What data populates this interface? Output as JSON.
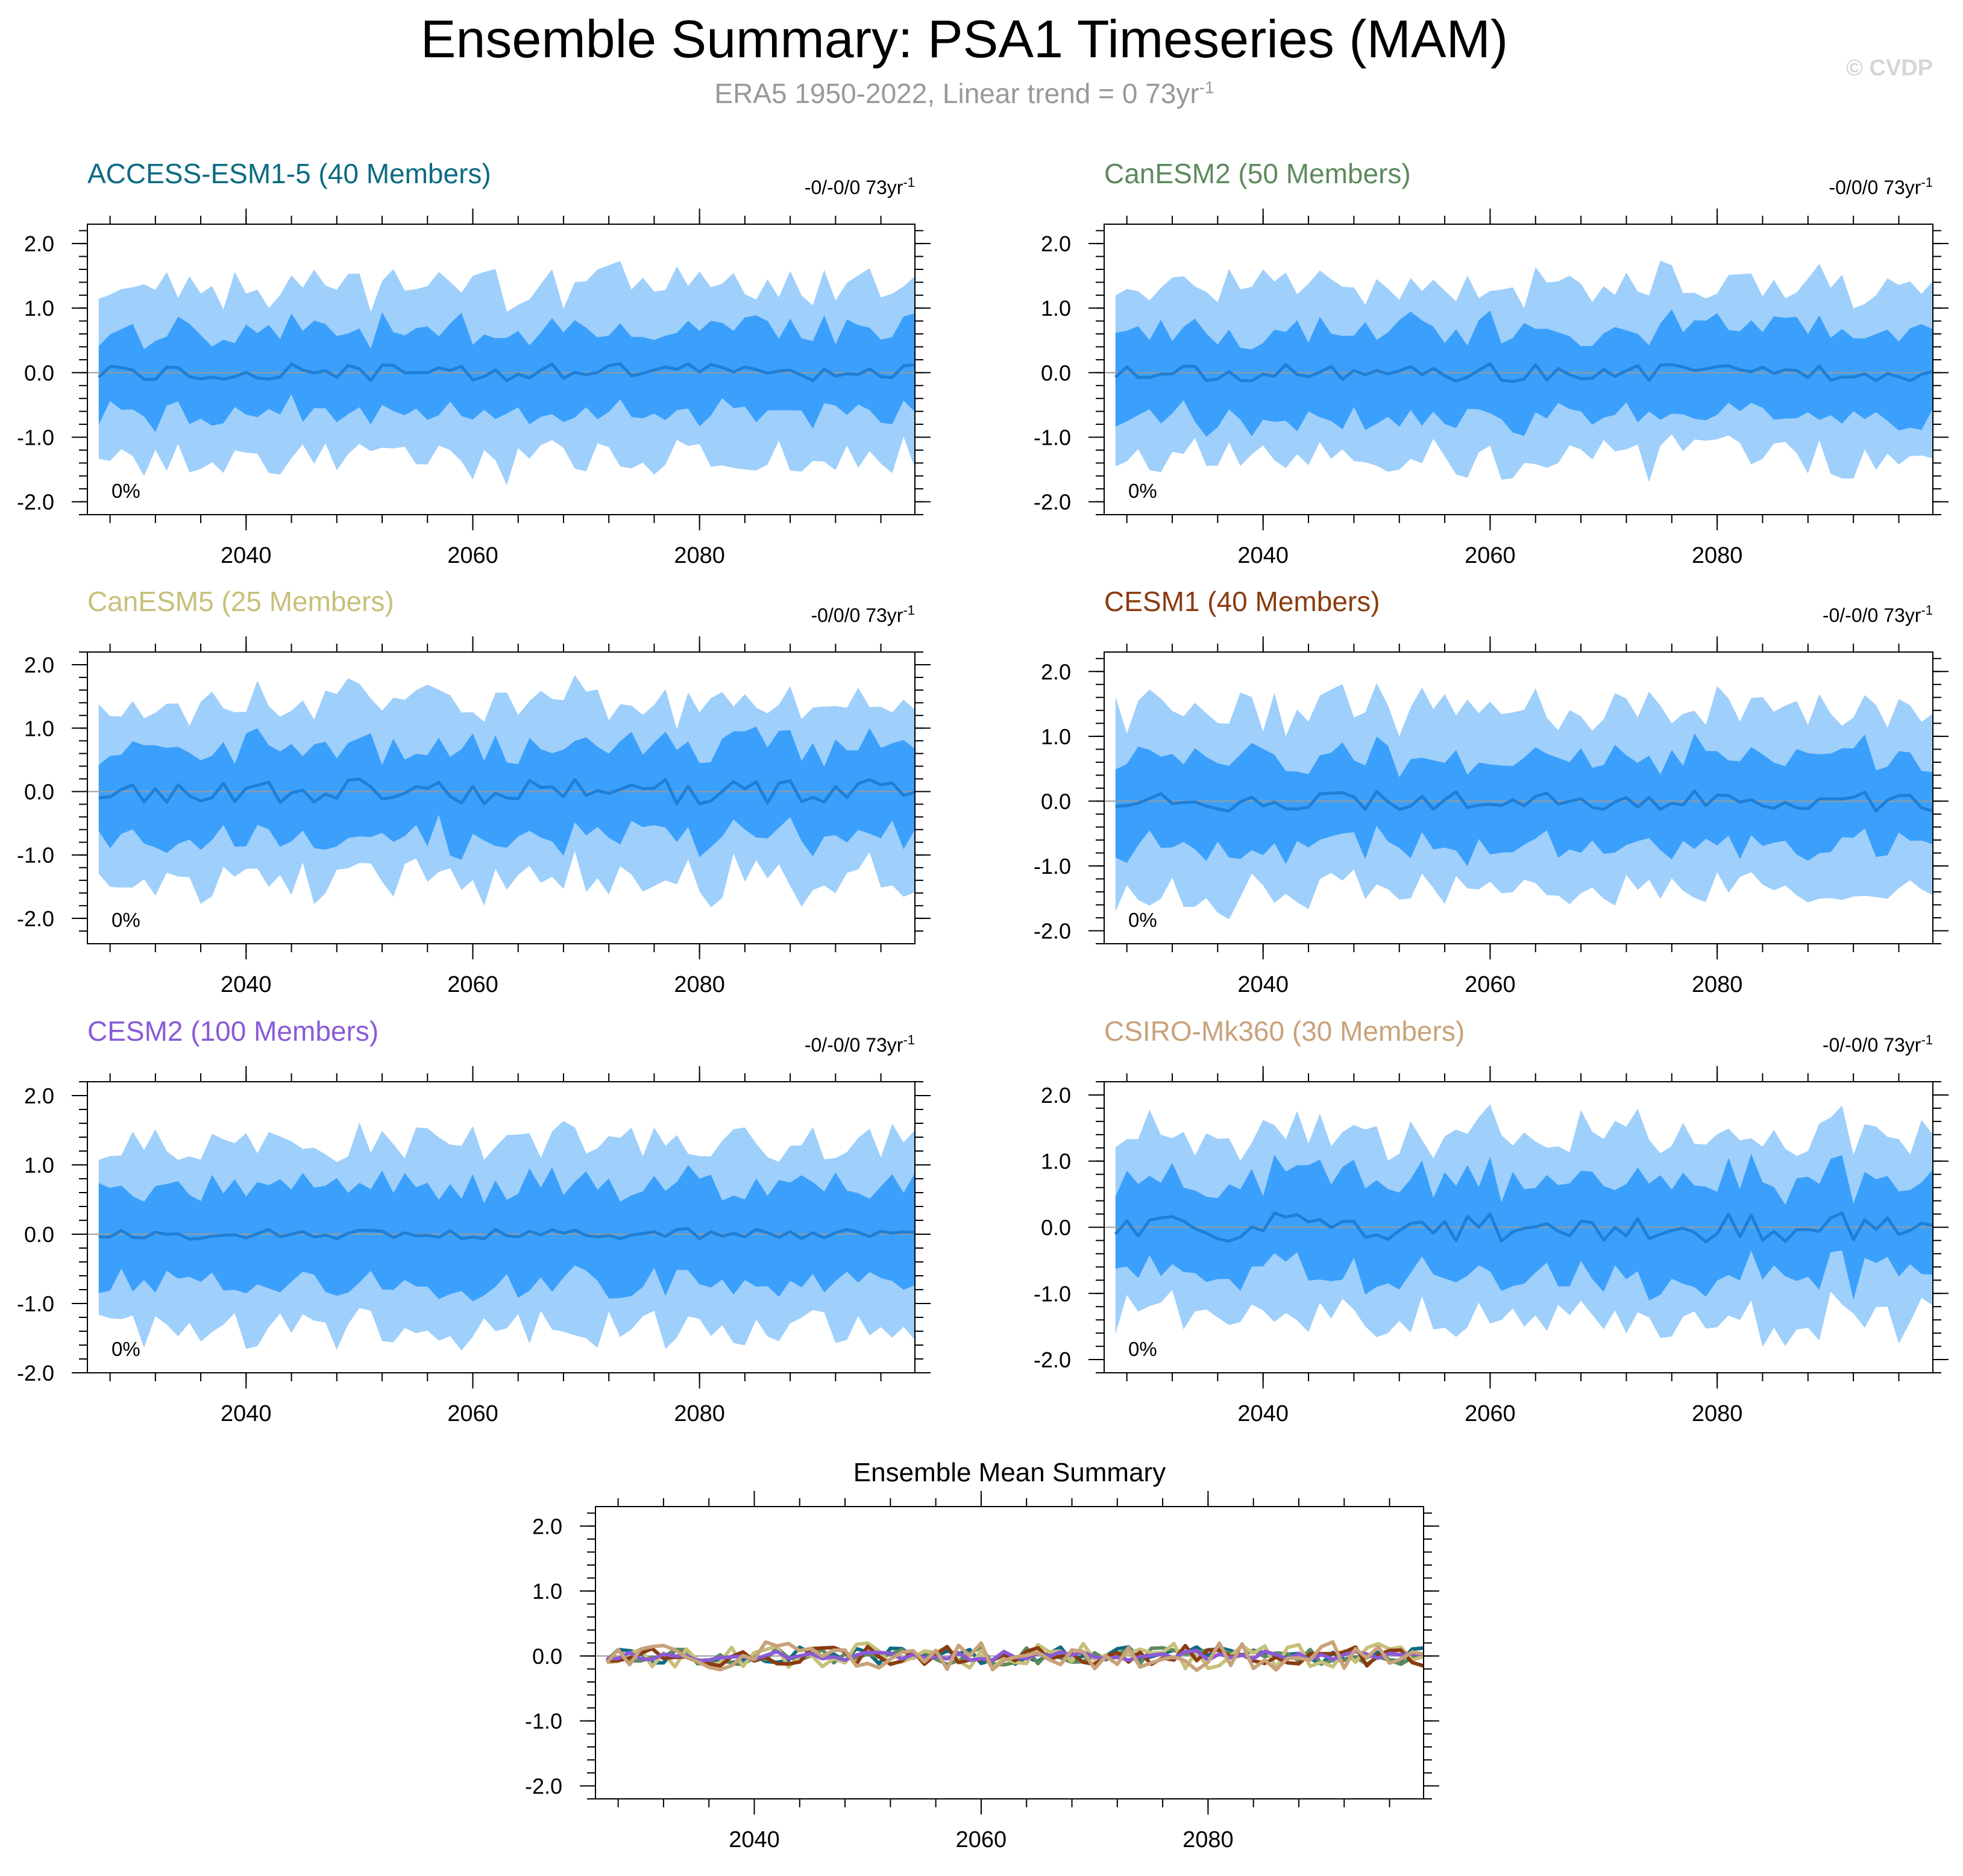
{
  "header": {
    "title": "Ensemble Summary: PSA1 Timeseries (MAM)",
    "subtitle_main": "ERA5 1950-2022, Linear trend = 0 73yr",
    "subtitle_sup": "-1",
    "watermark": "© CVDP"
  },
  "colors": {
    "outer_band": "#9fcffb",
    "inner_band": "#3ba0fb",
    "median_line": "#1f7fd6",
    "zero_line": "#9a9a9a"
  },
  "chart_data": [
    {
      "type": "area",
      "title": "ACCESS-ESM1-5 (40 Members)",
      "title_color": "#0d6b82",
      "trend_label": "-0/-0/0 73yr",
      "trend_sup": "-1",
      "percent_label": "0%",
      "xlim": [
        2026,
        2099
      ],
      "ylim": [
        -2.2,
        2.3
      ],
      "xticks": [
        2040,
        2060,
        2080
      ],
      "xtick_labels": [
        "2040",
        "2060",
        "2080"
      ],
      "yticks": [
        2.0,
        1.0,
        0.0,
        -1.0,
        -2.0
      ],
      "ytick_labels": [
        "2.0",
        "1.0",
        "0.0",
        "-1.0",
        "-2.0"
      ],
      "seed": 11,
      "outer_amp": 1.25,
      "inner_amp": 0.65,
      "median_amp": 0.14
    },
    {
      "type": "area",
      "title": "CanESM2 (50 Members)",
      "title_color": "#5e8a5e",
      "trend_label": "-0/0/0 73yr",
      "trend_sup": "-1",
      "percent_label": "0%",
      "xlim": [
        2026,
        2099
      ],
      "ylim": [
        -2.2,
        2.3
      ],
      "xticks": [
        2040,
        2060,
        2080
      ],
      "xtick_labels": [
        "2040",
        "2060",
        "2080"
      ],
      "yticks": [
        2.0,
        1.0,
        0.0,
        -1.0,
        -2.0
      ],
      "ytick_labels": [
        "2.0",
        "1.0",
        "0.0",
        "-1.0",
        "-2.0"
      ],
      "seed": 23,
      "outer_amp": 1.25,
      "inner_amp": 0.68,
      "median_amp": 0.14
    },
    {
      "type": "area",
      "title": "CanESM5 (25 Members)",
      "title_color": "#c7c07a",
      "trend_label": "-0/0/0 73yr",
      "trend_sup": "-1",
      "percent_label": "0%",
      "xlim": [
        2026,
        2099
      ],
      "ylim": [
        -2.4,
        2.2
      ],
      "xticks": [
        2040,
        2060,
        2080
      ],
      "xtick_labels": [
        "2040",
        "2060",
        "2080"
      ],
      "yticks": [
        2.0,
        1.0,
        0.0,
        -1.0,
        -2.0
      ],
      "ytick_labels": [
        "2.0",
        "1.0",
        "0.0",
        "-1.0",
        "-2.0"
      ],
      "seed": 37,
      "outer_amp": 1.3,
      "inner_amp": 0.72,
      "median_amp": 0.2
    },
    {
      "type": "area",
      "title": "CESM1 (40 Members)",
      "title_color": "#8a3b10",
      "trend_label": "-0/-0/0 73yr",
      "trend_sup": "-1",
      "percent_label": "0%",
      "xlim": [
        2026,
        2099
      ],
      "ylim": [
        -2.2,
        2.3
      ],
      "xticks": [
        2040,
        2060,
        2080
      ],
      "xtick_labels": [
        "2040",
        "2060",
        "2080"
      ],
      "yticks": [
        2.0,
        1.0,
        0.0,
        -1.0,
        -2.0
      ],
      "ytick_labels": [
        "2.0",
        "1.0",
        "0.0",
        "-1.0",
        "-2.0"
      ],
      "seed": 41,
      "outer_amp": 1.3,
      "inner_amp": 0.7,
      "median_amp": 0.16
    },
    {
      "type": "area",
      "title": "CESM2 (100 Members)",
      "title_color": "#8a5ad6",
      "trend_label": "-0/-0/0 73yr",
      "trend_sup": "-1",
      "percent_label": "0%",
      "xlim": [
        2026,
        2099
      ],
      "ylim": [
        -2.0,
        2.2
      ],
      "xticks": [
        2040,
        2060,
        2080
      ],
      "xtick_labels": [
        "2040",
        "2060",
        "2080"
      ],
      "yticks": [
        2.0,
        1.0,
        0.0,
        -1.0,
        -2.0
      ],
      "ytick_labels": [
        "2.0",
        "1.0",
        "0.0",
        "-1.0",
        "-2.0"
      ],
      "seed": 53,
      "outer_amp": 1.25,
      "inner_amp": 0.72,
      "median_amp": 0.08
    },
    {
      "type": "area",
      "title": "CSIRO-Mk360 (30 Members)",
      "title_color": "#c8a27a",
      "trend_label": "-0/-0/0 73yr",
      "trend_sup": "-1",
      "percent_label": "0%",
      "xlim": [
        2026,
        2099
      ],
      "ylim": [
        -2.2,
        2.2
      ],
      "xticks": [
        2040,
        2060,
        2080
      ],
      "xtick_labels": [
        "2040",
        "2060",
        "2080"
      ],
      "yticks": [
        2.0,
        1.0,
        0.0,
        -1.0,
        -2.0
      ],
      "ytick_labels": [
        "2.0",
        "1.0",
        "0.0",
        "-1.0",
        "-2.0"
      ],
      "seed": 67,
      "outer_amp": 1.3,
      "inner_amp": 0.72,
      "median_amp": 0.22
    },
    {
      "type": "line",
      "title": "Ensemble Mean Summary",
      "title_color": "#000000",
      "xlim": [
        2026,
        2099
      ],
      "ylim": [
        -2.2,
        2.3
      ],
      "xticks": [
        2040,
        2060,
        2080
      ],
      "xtick_labels": [
        "2040",
        "2060",
        "2080"
      ],
      "yticks": [
        2.0,
        1.0,
        0.0,
        -1.0,
        -2.0
      ],
      "ytick_labels": [
        "2.0",
        "1.0",
        "0.0",
        "-1.0",
        "-2.0"
      ],
      "series": [
        {
          "color": "#0d6b82",
          "seed": 11,
          "amp": 0.14
        },
        {
          "color": "#5e8a5e",
          "seed": 23,
          "amp": 0.14
        },
        {
          "color": "#c7c07a",
          "seed": 37,
          "amp": 0.2
        },
        {
          "color": "#8a3b10",
          "seed": 41,
          "amp": 0.16
        },
        {
          "color": "#8a5ad6",
          "seed": 53,
          "amp": 0.08
        },
        {
          "color": "#c8a27a",
          "seed": 67,
          "amp": 0.22
        }
      ]
    }
  ]
}
